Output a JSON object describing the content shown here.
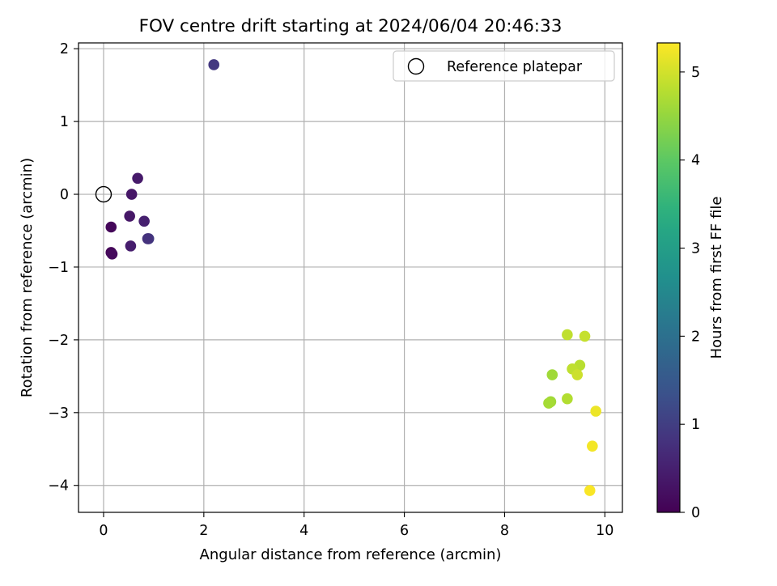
{
  "chart_data": {
    "type": "scatter",
    "title": "FOV centre drift starting at 2024/06/04 20:46:33",
    "xlabel": "Angular distance from reference (arcmin)",
    "ylabel": "Rotation from reference (arcmin)",
    "xlim": [
      -0.5,
      10.35
    ],
    "ylim": [
      -4.37,
      2.08
    ],
    "x_ticks": [
      0,
      2,
      4,
      6,
      8,
      10
    ],
    "y_ticks": [
      -4,
      -3,
      -2,
      -1,
      0,
      1,
      2
    ],
    "x_tick_labels": [
      "0",
      "2",
      "4",
      "6",
      "8",
      "10"
    ],
    "y_tick_labels": [
      "−4",
      "−3",
      "−2",
      "−1",
      "0",
      "1",
      "2"
    ],
    "grid": true,
    "legend": {
      "placement": "top-right",
      "entries": [
        {
          "label": "Reference platepar",
          "marker": "open-circle",
          "x": 0,
          "y": 0
        }
      ]
    },
    "colorbar": {
      "label": "Hours from first FF file",
      "colormap": "viridis",
      "range": [
        0,
        5.33
      ],
      "ticks": [
        0,
        1,
        2,
        3,
        4,
        5
      ],
      "tick_labels": [
        "0",
        "1",
        "2",
        "3",
        "4",
        "5"
      ]
    },
    "series": [
      {
        "points": [
          {
            "x": 0.15,
            "y": -0.45,
            "c": 0.1
          },
          {
            "x": 0.15,
            "y": -0.8,
            "c": 0.05
          },
          {
            "x": 0.17,
            "y": -0.82,
            "c": 0.15
          },
          {
            "x": 0.52,
            "y": -0.3,
            "c": 0.35
          },
          {
            "x": 0.56,
            "y": 0.0,
            "c": 0.35
          },
          {
            "x": 0.54,
            "y": -0.71,
            "c": 0.45
          },
          {
            "x": 0.68,
            "y": 0.22,
            "c": 0.4
          },
          {
            "x": 0.81,
            "y": -0.37,
            "c": 0.5
          },
          {
            "x": 0.9,
            "y": -0.61,
            "c": 0.95
          },
          {
            "x": 0.88,
            "y": -0.61,
            "c": 0.8
          },
          {
            "x": 2.2,
            "y": 1.78,
            "c": 0.9
          },
          {
            "x": 9.25,
            "y": -1.93,
            "c": 4.85
          },
          {
            "x": 9.6,
            "y": -1.95,
            "c": 4.9
          },
          {
            "x": 9.5,
            "y": -2.35,
            "c": 4.8
          },
          {
            "x": 9.35,
            "y": -2.4,
            "c": 4.85
          },
          {
            "x": 9.45,
            "y": -2.48,
            "c": 4.95
          },
          {
            "x": 8.95,
            "y": -2.48,
            "c": 4.6
          },
          {
            "x": 9.25,
            "y": -2.81,
            "c": 4.75
          },
          {
            "x": 8.92,
            "y": -2.85,
            "c": 4.6
          },
          {
            "x": 8.88,
            "y": -2.87,
            "c": 4.65
          },
          {
            "x": 9.82,
            "y": -2.98,
            "c": 5.2
          },
          {
            "x": 9.75,
            "y": -3.46,
            "c": 5.25
          },
          {
            "x": 9.7,
            "y": -4.07,
            "c": 5.3
          }
        ]
      }
    ]
  }
}
